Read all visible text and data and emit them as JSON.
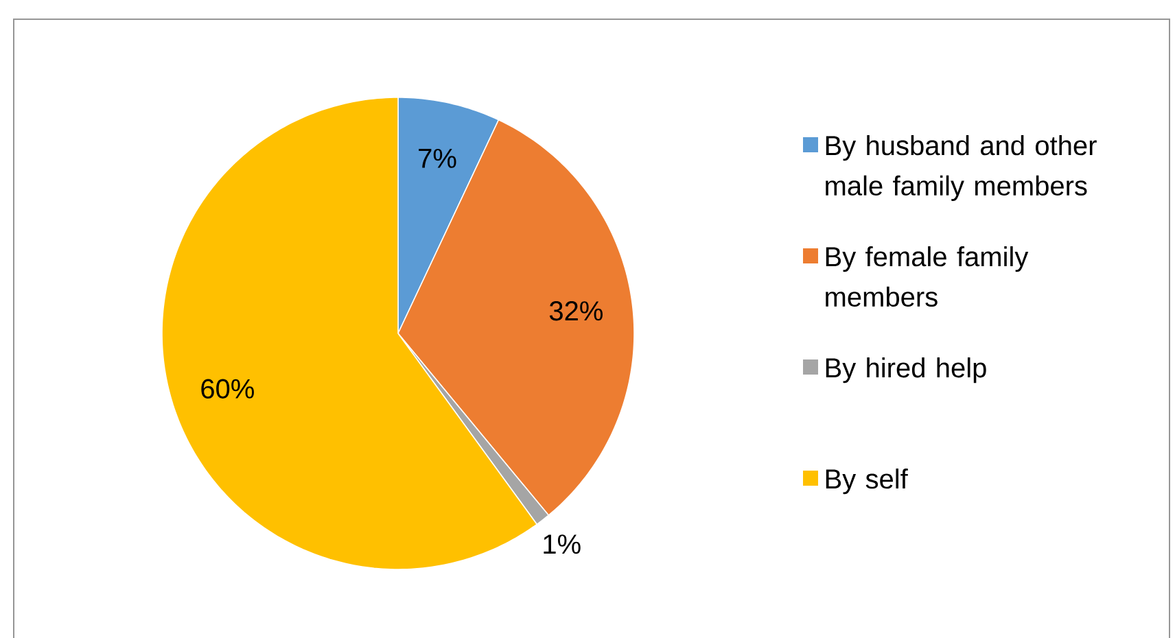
{
  "chart_data": {
    "type": "pie",
    "categories": [
      "By husband and other male family members",
      "By female family members",
      "By hired help",
      "By self"
    ],
    "values": [
      7,
      32,
      1,
      60
    ],
    "colors": [
      "#5b9bd5",
      "#ed7d31",
      "#a5a5a5",
      "#ffc000"
    ],
    "value_labels": [
      "7%",
      "32%",
      "1%",
      "60%"
    ],
    "legend": "right"
  }
}
